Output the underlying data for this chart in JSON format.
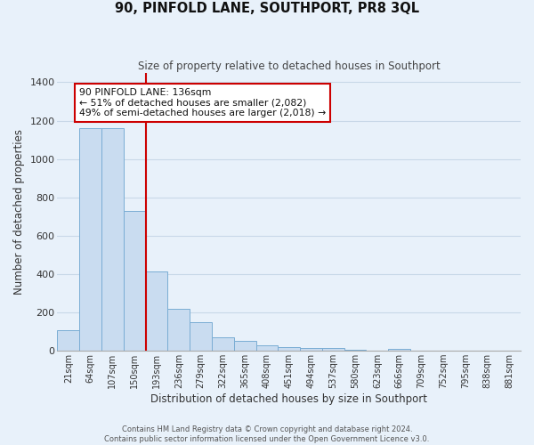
{
  "title": "90, PINFOLD LANE, SOUTHPORT, PR8 3QL",
  "subtitle": "Size of property relative to detached houses in Southport",
  "xlabel": "Distribution of detached houses by size in Southport",
  "ylabel": "Number of detached properties",
  "bar_labels": [
    "21sqm",
    "64sqm",
    "107sqm",
    "150sqm",
    "193sqm",
    "236sqm",
    "279sqm",
    "322sqm",
    "365sqm",
    "408sqm",
    "451sqm",
    "494sqm",
    "537sqm",
    "580sqm",
    "623sqm",
    "666sqm",
    "709sqm",
    "752sqm",
    "795sqm",
    "838sqm",
    "881sqm"
  ],
  "bar_values": [
    107,
    1160,
    1160,
    730,
    415,
    220,
    150,
    72,
    50,
    30,
    18,
    15,
    15,
    5,
    0,
    8,
    0,
    0,
    0,
    0,
    0
  ],
  "bar_color": "#c9dcf0",
  "bar_edge_color": "#7aadd4",
  "vline_color": "#cc0000",
  "vline_position": 3.5,
  "annotation_text": "90 PINFOLD LANE: 136sqm\n← 51% of detached houses are smaller (2,082)\n49% of semi-detached houses are larger (2,018) →",
  "annotation_box_color": "#ffffff",
  "annotation_box_edge": "#cc0000",
  "ylim": [
    0,
    1450
  ],
  "yticks": [
    0,
    200,
    400,
    600,
    800,
    1000,
    1200,
    1400
  ],
  "grid_color": "#c8d8e8",
  "background_color": "#e8f1fa",
  "plot_bg_color": "#e8f1fa",
  "footer_line1": "Contains HM Land Registry data © Crown copyright and database right 2024.",
  "footer_line2": "Contains public sector information licensed under the Open Government Licence v3.0."
}
